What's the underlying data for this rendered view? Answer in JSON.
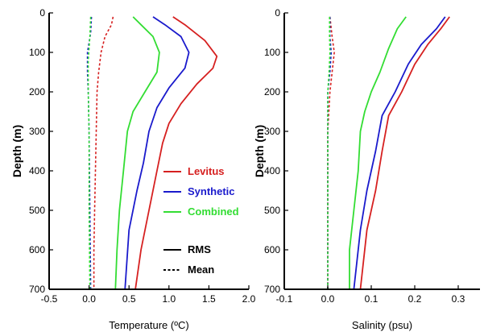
{
  "chart_data": [
    {
      "type": "line",
      "xlabel": "Temperature (ºC)",
      "ylabel": "Depth (m)",
      "xlim": [
        -0.5,
        2.0
      ],
      "ylim": [
        700,
        0
      ],
      "xticks": [
        "-0.5",
        "0.0",
        "0.5",
        "1.0",
        "1.5",
        "2.0"
      ],
      "yticks": [
        "0",
        "100",
        "200",
        "300",
        "400",
        "500",
        "600",
        "700"
      ],
      "legend_position": "right-middle",
      "colors": {
        "Levitus": "#d62020",
        "Synthetic": "#1a1acc",
        "Combined": "#33dd33"
      },
      "legend": {
        "series": [
          {
            "name": "Levitus",
            "color": "#d62020"
          },
          {
            "name": "Synthetic",
            "color": "#1a1acc"
          },
          {
            "name": "Combined",
            "color": "#33dd33"
          }
        ],
        "styles": [
          {
            "name": "RMS",
            "dash": "solid"
          },
          {
            "name": "Mean",
            "dash": "dotted"
          }
        ]
      },
      "series": [
        {
          "name": "Levitus",
          "stat": "RMS",
          "color": "#d62020",
          "dash": "solid",
          "points": [
            [
              1.05,
              10
            ],
            [
              1.2,
              30
            ],
            [
              1.45,
              70
            ],
            [
              1.6,
              110
            ],
            [
              1.55,
              140
            ],
            [
              1.35,
              180
            ],
            [
              1.15,
              230
            ],
            [
              1.0,
              280
            ],
            [
              0.92,
              330
            ],
            [
              0.85,
              400
            ],
            [
              0.75,
              500
            ],
            [
              0.65,
              600
            ],
            [
              0.58,
              700
            ]
          ]
        },
        {
          "name": "Synthetic",
          "stat": "RMS",
          "color": "#1a1acc",
          "dash": "solid",
          "points": [
            [
              0.8,
              10
            ],
            [
              0.95,
              30
            ],
            [
              1.15,
              60
            ],
            [
              1.25,
              100
            ],
            [
              1.2,
              140
            ],
            [
              1.0,
              190
            ],
            [
              0.85,
              240
            ],
            [
              0.75,
              300
            ],
            [
              0.68,
              380
            ],
            [
              0.6,
              450
            ],
            [
              0.5,
              550
            ],
            [
              0.45,
              700
            ]
          ]
        },
        {
          "name": "Combined",
          "stat": "RMS",
          "color": "#33dd33",
          "dash": "solid",
          "points": [
            [
              0.55,
              10
            ],
            [
              0.65,
              30
            ],
            [
              0.8,
              60
            ],
            [
              0.88,
              100
            ],
            [
              0.85,
              150
            ],
            [
              0.7,
              200
            ],
            [
              0.55,
              250
            ],
            [
              0.48,
              300
            ],
            [
              0.43,
              400
            ],
            [
              0.38,
              500
            ],
            [
              0.35,
              600
            ],
            [
              0.33,
              700
            ]
          ]
        },
        {
          "name": "Levitus",
          "stat": "Mean",
          "color": "#d62020",
          "dash": "dotted",
          "points": [
            [
              0.3,
              10
            ],
            [
              0.28,
              30
            ],
            [
              0.2,
              60
            ],
            [
              0.15,
              100
            ],
            [
              0.12,
              150
            ],
            [
              0.1,
              200
            ],
            [
              0.09,
              300
            ],
            [
              0.08,
              400
            ],
            [
              0.07,
              500
            ],
            [
              0.06,
              600
            ],
            [
              0.06,
              700
            ]
          ]
        },
        {
          "name": "Synthetic",
          "stat": "Mean",
          "color": "#1a1acc",
          "dash": "dotted",
          "points": [
            [
              0.03,
              10
            ],
            [
              0.02,
              50
            ],
            [
              -0.02,
              100
            ],
            [
              -0.02,
              150
            ],
            [
              -0.01,
              200
            ],
            [
              0.0,
              300
            ],
            [
              0.01,
              500
            ],
            [
              0.02,
              700
            ]
          ]
        },
        {
          "name": "Combined",
          "stat": "Mean",
          "color": "#33dd33",
          "dash": "dotted",
          "points": [
            [
              0.02,
              10
            ],
            [
              0.01,
              60
            ],
            [
              -0.01,
              120
            ],
            [
              -0.01,
              200
            ],
            [
              0.0,
              300
            ],
            [
              0.0,
              500
            ],
            [
              0.01,
              700
            ]
          ]
        }
      ]
    },
    {
      "type": "line",
      "xlabel": "Salinity (psu)",
      "ylabel": "Depth (m)",
      "xlim": [
        -0.1,
        0.35
      ],
      "ylim": [
        700,
        0
      ],
      "xticks": [
        "-0.1",
        "0.0",
        "0.1",
        "0.2",
        "0.3"
      ],
      "yticks": [
        "0",
        "100",
        "200",
        "300",
        "400",
        "500",
        "600",
        "700"
      ],
      "series": [
        {
          "name": "Levitus",
          "stat": "RMS",
          "color": "#d62020",
          "dash": "solid",
          "points": [
            [
              0.28,
              10
            ],
            [
              0.26,
              40
            ],
            [
              0.23,
              80
            ],
            [
              0.2,
              130
            ],
            [
              0.17,
              200
            ],
            [
              0.14,
              260
            ],
            [
              0.125,
              350
            ],
            [
              0.11,
              450
            ],
            [
              0.09,
              550
            ],
            [
              0.075,
              700
            ]
          ]
        },
        {
          "name": "Synthetic",
          "stat": "RMS",
          "color": "#1a1acc",
          "dash": "solid",
          "points": [
            [
              0.27,
              10
            ],
            [
              0.25,
              40
            ],
            [
              0.215,
              80
            ],
            [
              0.185,
              130
            ],
            [
              0.155,
              200
            ],
            [
              0.125,
              260
            ],
            [
              0.11,
              350
            ],
            [
              0.09,
              450
            ],
            [
              0.075,
              550
            ],
            [
              0.06,
              700
            ]
          ]
        },
        {
          "name": "Combined",
          "stat": "RMS",
          "color": "#33dd33",
          "dash": "solid",
          "points": [
            [
              0.18,
              10
            ],
            [
              0.16,
              40
            ],
            [
              0.14,
              90
            ],
            [
              0.12,
              150
            ],
            [
              0.1,
              200
            ],
            [
              0.085,
              250
            ],
            [
              0.075,
              300
            ],
            [
              0.07,
              400
            ],
            [
              0.06,
              500
            ],
            [
              0.05,
              600
            ],
            [
              0.05,
              700
            ]
          ]
        },
        {
          "name": "Levitus",
          "stat": "Mean",
          "color": "#d62020",
          "dash": "dotted",
          "points": [
            [
              0.005,
              10
            ],
            [
              0.01,
              60
            ],
            [
              0.015,
              100
            ],
            [
              0.01,
              150
            ],
            [
              0.005,
              200
            ],
            [
              0.0,
              300
            ],
            [
              0.0,
              700
            ]
          ]
        },
        {
          "name": "Synthetic",
          "stat": "Mean",
          "color": "#1a1acc",
          "dash": "dotted",
          "points": [
            [
              0.005,
              10
            ],
            [
              0.005,
              60
            ],
            [
              0.008,
              100
            ],
            [
              0.005,
              150
            ],
            [
              0.0,
              200
            ],
            [
              0.0,
              700
            ]
          ]
        },
        {
          "name": "Combined",
          "stat": "Mean",
          "color": "#33dd33",
          "dash": "dotted",
          "points": [
            [
              0.004,
              10
            ],
            [
              0.004,
              60
            ],
            [
              0.005,
              100
            ],
            [
              0.003,
              150
            ],
            [
              0.0,
              200
            ],
            [
              0.0,
              700
            ]
          ]
        }
      ]
    }
  ]
}
